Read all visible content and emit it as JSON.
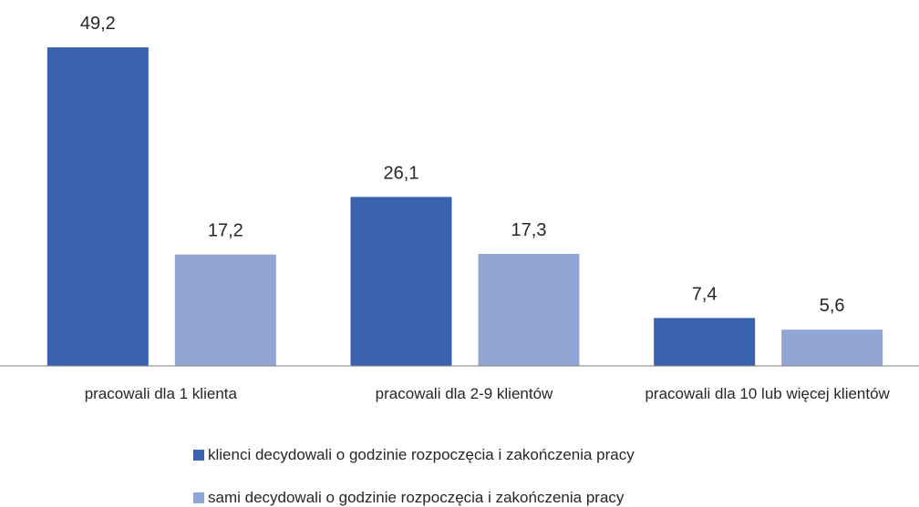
{
  "chart_data": {
    "type": "bar",
    "categories": [
      "pracowali dla 1 klienta",
      "pracowali dla 2-9 klientów",
      "pracowali dla 10 lub więcej klientów"
    ],
    "series": [
      {
        "name": "klienci decydowali o godzinie rozpoczęcia i zakończenia pracy",
        "color": "#3a62ad",
        "values": [
          49.2,
          26.1,
          7.4
        ],
        "value_labels": [
          "49,2",
          "26,1",
          "7,4"
        ]
      },
      {
        "name": "sami decydowali o godzinie rozpoczęcia i zakończenia pracy",
        "color": "#91a5d5",
        "values": [
          17.2,
          17.3,
          5.6
        ],
        "value_labels": [
          "17,2",
          "17,3",
          "5,6"
        ]
      }
    ]
  }
}
